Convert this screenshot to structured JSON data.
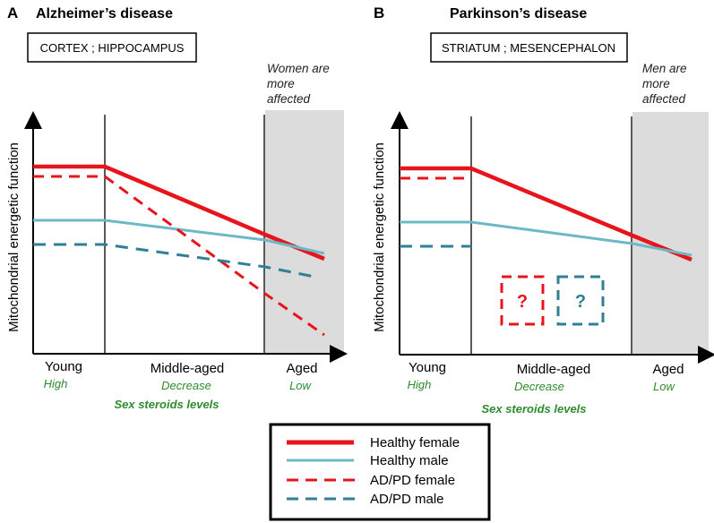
{
  "colors": {
    "female": "#e8141c",
    "male": "#6cb8c6",
    "ad_female": "#e8141c",
    "ad_male": "#2f7f96",
    "aged_shade": "#dcdcdc",
    "green": "#2e8b2e"
  },
  "panel_a": {
    "letter": "A",
    "title": "Alzheimer’s disease",
    "region": "CORTEX ; HIPPOCAMPUS",
    "note_lines": [
      "Women are",
      "more",
      "affected"
    ],
    "y_axis_label": "Mitochondrial energetic function",
    "stages": [
      "Young",
      "Middle-aged",
      "Aged"
    ],
    "levels": [
      "High",
      "Decrease",
      "Low"
    ],
    "steroids_label": "Sex steroids levels"
  },
  "panel_b": {
    "letter": "B",
    "title": "Parkinson’s disease",
    "region": "STRIATUM ; MESENCEPHALON",
    "note_lines": [
      "Men are",
      "more",
      "affected"
    ],
    "y_axis_label": "Mitochondrial energetic function",
    "stages": [
      "Young",
      "Middle-aged",
      "Aged"
    ],
    "levels": [
      "High",
      "Decrease",
      "Low"
    ],
    "steroids_label": "Sex steroids levels",
    "unknown_marks": [
      "?",
      "?"
    ]
  },
  "legend": {
    "items": [
      {
        "label": "Healthy female",
        "style": "solid-thick",
        "color": "#e8141c"
      },
      {
        "label": "Healthy male",
        "style": "solid",
        "color": "#6cb8c6"
      },
      {
        "label": "AD/PD female",
        "style": "dashed",
        "color": "#e8141c"
      },
      {
        "label": "AD/PD male",
        "style": "dashed",
        "color": "#2f7f96"
      }
    ]
  }
}
